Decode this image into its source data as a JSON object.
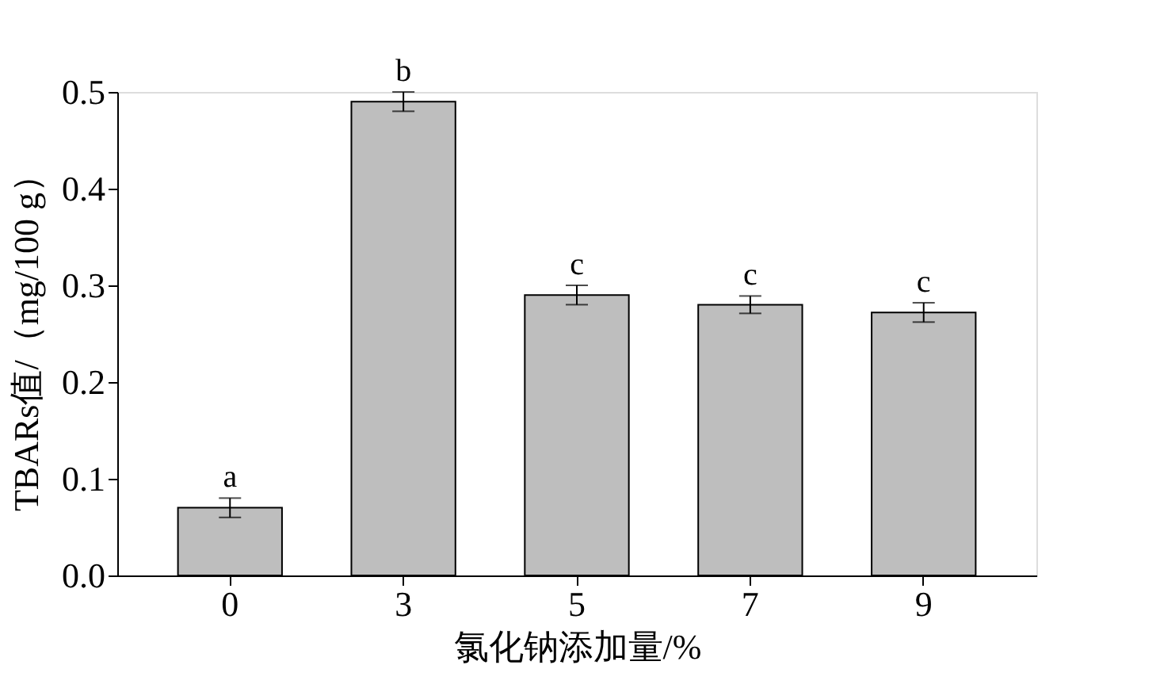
{
  "chart_data": {
    "type": "bar",
    "xlabel": "氯化钠添加量/%",
    "ylabel": "TBARs值/（mg/100 g）",
    "categories": [
      "0",
      "3",
      "5",
      "7",
      "9"
    ],
    "values": [
      0.07,
      0.49,
      0.29,
      0.28,
      0.272
    ],
    "errors": [
      0.01,
      0.01,
      0.01,
      0.009,
      0.01
    ],
    "color": "#bebebe",
    "ylim": [
      0,
      0.5
    ],
    "yticks": [
      {
        "value": 0,
        "label": "0.0"
      },
      0.1,
      0.2,
      0.3,
      0.4,
      0.5
    ],
    "annotations": [
      {
        "text": "a",
        "x": "0",
        "y": 0.08
      },
      {
        "text": "b",
        "x": "3",
        "y": 0.5
      },
      {
        "text": "c",
        "x": "5",
        "y": 0.3
      },
      {
        "text": "c",
        "x": "7",
        "y": 0.289
      },
      {
        "text": "c",
        "x": "9",
        "y": 0.282
      }
    ],
    "grid": false
  }
}
